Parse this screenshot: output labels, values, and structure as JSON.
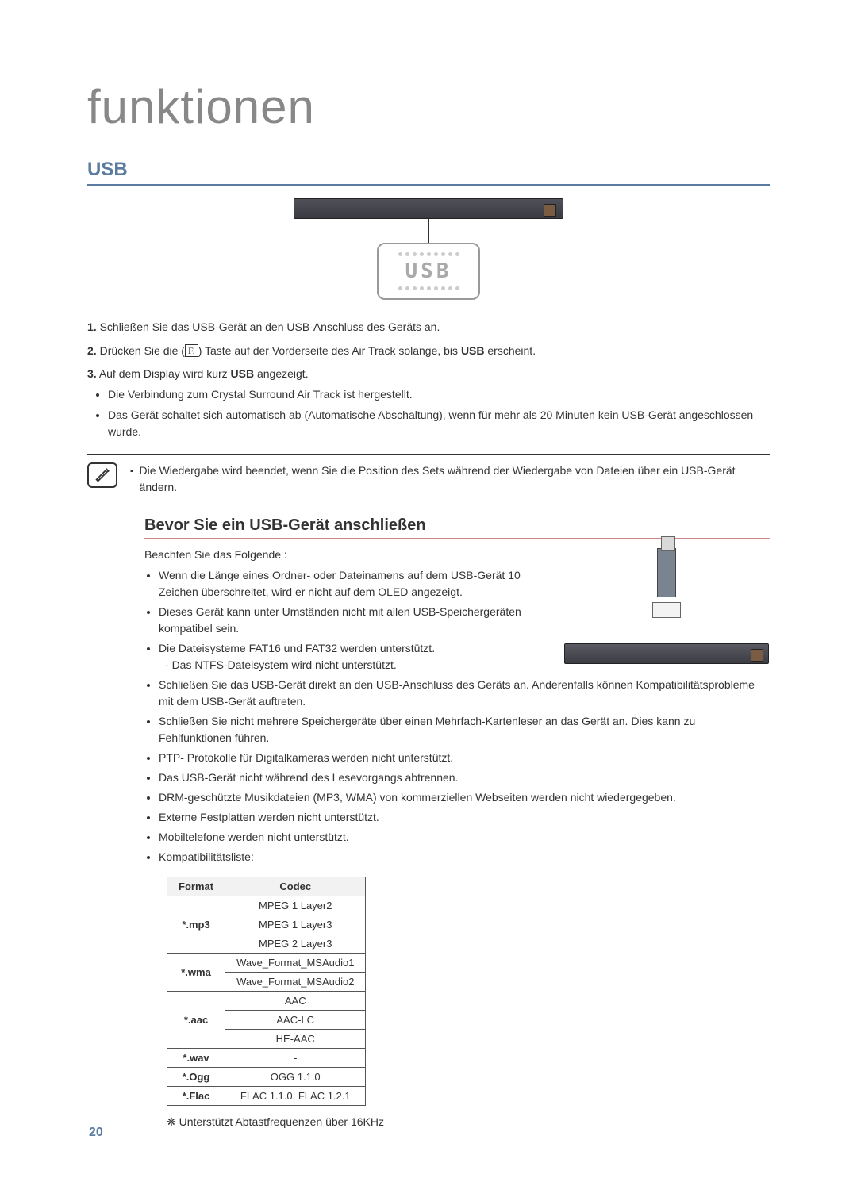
{
  "page": {
    "title": "funktionen",
    "number": "20"
  },
  "usb": {
    "heading": "USB",
    "display_text": "USB",
    "steps": {
      "s1": {
        "num": "1.",
        "text": "Schließen Sie das USB-Gerät an den USB-Anschluss des Geräts an."
      },
      "s2": {
        "num": "2.",
        "pre": "Drücken Sie die (",
        "post": ") Taste auf der Vorderseite des Air Track solange, bis ",
        "bold": "USB",
        "tail": " erscheint."
      },
      "s3": {
        "num": "3.",
        "pre": "Auf dem Display wird kurz ",
        "bold": "USB",
        "tail": " angezeigt."
      }
    },
    "sub_bullets": [
      "Die Verbindung zum Crystal Surround Air Track ist hergestellt.",
      "Das Gerät schaltet sich automatisch ab (Automatische Abschaltung), wenn für mehr als 20 Minuten kein USB-Gerät angeschlossen wurde."
    ],
    "note": "Die Wiedergabe wird beendet, wenn Sie die Position des Sets während der Wiedergabe von Dateien über ein USB-Gerät ändern."
  },
  "before": {
    "heading": "Bevor Sie ein USB-Gerät anschließen",
    "lead": "Beachten Sie das Folgende :",
    "bullets": [
      "Wenn die Länge eines Ordner- oder Dateinamens auf dem USB-Gerät 10 Zeichen überschreitet, wird er nicht auf dem OLED angezeigt.",
      "Dieses Gerät kann unter Umständen nicht mit allen USB-Speichergeräten kompatibel sein.",
      "Die Dateisysteme FAT16 und FAT32 werden unterstützt.",
      "Schließen Sie das USB-Gerät direkt an den USB-Anschluss des Geräts an. Anderenfalls können Kompatibilitätsprobleme mit dem USB-Gerät auftreten.",
      "Schließen Sie nicht mehrere Speichergeräte über einen Mehrfach-Kartenleser an das Gerät an. Dies kann zu Fehlfunktionen führen.",
      "PTP- Protokolle für Digitalkameras werden nicht unterstützt.",
      "Das USB-Gerät nicht während des Lesevorgangs abtrennen.",
      "DRM-geschützte Musikdateien (MP3, WMA) von kommerziellen Webseiten werden nicht wiedergegeben.",
      "Externe Festplatten werden nicht unterstützt.",
      "Mobiltelefone werden nicht unterstützt.",
      "Kompatibilitätsliste:"
    ],
    "ntfs_sub": "Das NTFS-Dateisystem wird nicht unterstützt."
  },
  "table": {
    "col_format": "Format",
    "col_codec": "Codec",
    "rows": [
      {
        "format": "*.mp3",
        "codecs": [
          "MPEG 1 Layer2",
          "MPEG 1 Layer3",
          "MPEG 2 Layer3"
        ]
      },
      {
        "format": "*.wma",
        "codecs": [
          "Wave_Format_MSAudio1",
          "Wave_Format_MSAudio2"
        ]
      },
      {
        "format": "*.aac",
        "codecs": [
          "AAC",
          "AAC-LC",
          "HE-AAC"
        ]
      },
      {
        "format": "*.wav",
        "codecs": [
          "-"
        ]
      },
      {
        "format": "*.Ogg",
        "codecs": [
          "OGG 1.1.0"
        ]
      },
      {
        "format": "*.Flac",
        "codecs": [
          "FLAC 1.1.0, FLAC 1.2.1"
        ]
      }
    ]
  },
  "footnote": {
    "mark": "❋",
    "text": "Unterstützt Abtastfrequenzen über 16KHz"
  },
  "colors": {
    "heading_blue": "#5a7ca0",
    "title_grey": "#888888",
    "text": "#333333"
  }
}
